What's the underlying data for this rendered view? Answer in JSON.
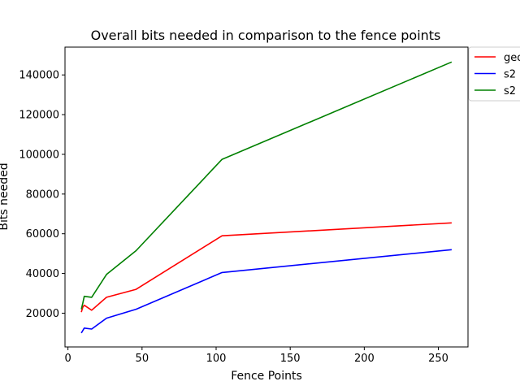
{
  "chart_data": {
    "type": "line",
    "title": "Overall bits needed in comparison to the fence points",
    "xlabel": "Fence Points",
    "ylabel": "Bits needed",
    "xlim": [
      -2,
      270
    ],
    "ylim": [
      3000,
      154000
    ],
    "xticks": [
      0,
      50,
      100,
      150,
      200,
      250
    ],
    "yticks": [
      20000,
      40000,
      60000,
      80000,
      100000,
      120000,
      140000
    ],
    "grid": false,
    "legend_position": "outside upper-right (clipped)",
    "series": [
      {
        "name": "geo",
        "color": "#ff0000",
        "x": [
          9,
          10,
          11,
          16,
          26,
          46,
          104,
          259
        ],
        "y": [
          20500,
          23000,
          24000,
          21500,
          28000,
          32000,
          59000,
          65500
        ]
      },
      {
        "name": "s2",
        "color": "#0000ff",
        "x": [
          9,
          11,
          16,
          26,
          46,
          104,
          259
        ],
        "y": [
          10000,
          12500,
          12000,
          17500,
          22000,
          40500,
          52000
        ]
      },
      {
        "name": "s2",
        "color": "#008000",
        "x": [
          9,
          10,
          11,
          16,
          26,
          46,
          104,
          259
        ],
        "y": [
          22000,
          25000,
          28500,
          28000,
          39500,
          51500,
          97500,
          146500
        ]
      }
    ]
  }
}
